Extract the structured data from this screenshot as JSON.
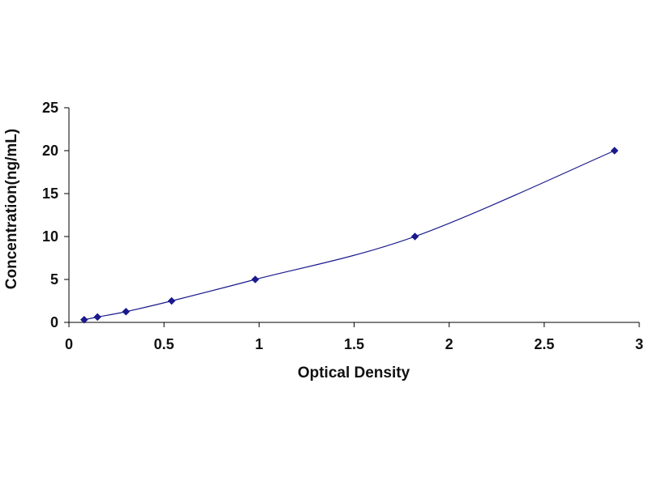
{
  "chart_data": {
    "type": "scatter",
    "title": "",
    "xlabel": "Optical Density",
    "ylabel": "Concentration(ng/mL)",
    "xlim": [
      0,
      3
    ],
    "ylim": [
      0,
      25
    ],
    "x_ticks": [
      0,
      0.5,
      1,
      1.5,
      2,
      2.5,
      3
    ],
    "x_tick_labels": [
      "0",
      "0.5",
      "1",
      "1.5",
      "2",
      "2.5",
      "3"
    ],
    "y_ticks": [
      0,
      5,
      10,
      15,
      20,
      25
    ],
    "y_tick_labels": [
      "0",
      "5",
      "10",
      "15",
      "20",
      "25"
    ],
    "grid": false,
    "legend": "none",
    "series": [
      {
        "x": [
          0.08,
          0.15,
          0.3,
          0.54,
          0.98,
          1.82,
          2.87
        ],
        "y": [
          0.31,
          0.625,
          1.25,
          2.5,
          5,
          10,
          20
        ],
        "marker": "diamond",
        "color": "#1a1a8c",
        "trendline": true
      }
    ]
  }
}
